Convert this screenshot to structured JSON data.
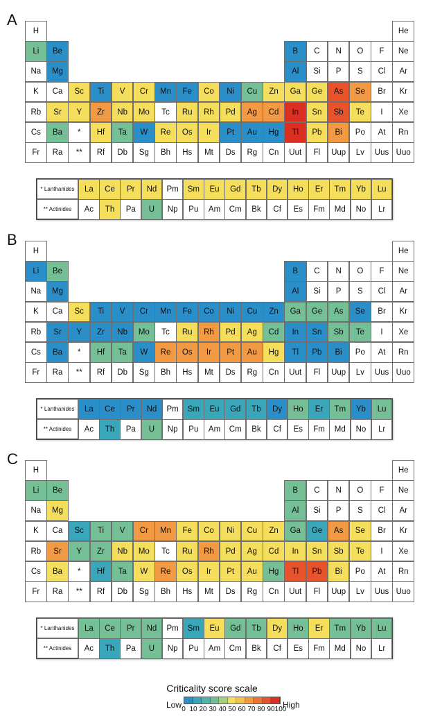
{
  "palette": {
    "white": "#ffffff",
    "b": "#2a8fc9",
    "t": "#3aa6b9",
    "g": "#74bf96",
    "y": "#f4de5c",
    "o": "#f29a43",
    "r": "#e9532b",
    "R": "#dd2e22"
  },
  "panels": [
    {
      "letter": "A",
      "main": [
        [
          "H w",
          "",
          "",
          "",
          "",
          "",
          "",
          "",
          "",
          "",
          "",
          "",
          "",
          "",
          "",
          "",
          "",
          "He w"
        ],
        [
          "Li g",
          "Be b",
          "",
          "",
          "",
          "",
          "",
          "",
          "",
          "",
          "",
          "",
          "B b",
          "C w",
          "N w",
          "O w",
          "F w",
          "Ne w"
        ],
        [
          "Na w",
          "Mg b",
          "",
          "",
          "",
          "",
          "",
          "",
          "",
          "",
          "",
          "",
          "Al b",
          "Si w",
          "P w",
          "S w",
          "Cl w",
          "Ar w"
        ],
        [
          "K w",
          "Ca w",
          "Sc y",
          "Ti b",
          "V y",
          "Cr y",
          "Mn b",
          "Fe b",
          "Co y",
          "Ni b",
          "Cu g",
          "Zn y",
          "Ga y",
          "Ge y",
          "As r",
          "Se o",
          "Br w",
          "Kr w"
        ],
        [
          "Rb w",
          "Sr y",
          "Y y",
          "Zr o",
          "Nb y",
          "Mo y",
          "Tc w",
          "Ru y",
          "Rh y",
          "Pd y",
          "Ag o",
          "Cd o",
          "In R",
          "Sn y",
          "Sb r",
          "Te y",
          "I w",
          "Xe w"
        ],
        [
          "Cs w",
          "Ba g",
          "* w",
          "Hf y",
          "Ta g",
          "W b",
          "Re y",
          "Os y",
          "Ir y",
          "Pt b",
          "Au b",
          "Hg b",
          "Tl R",
          "Pb y",
          "Bi o",
          "Po w",
          "At w",
          "Rn w"
        ],
        [
          "Fr w",
          "Ra w",
          "** w",
          "Rf w",
          "Db w",
          "Sg w",
          "Bh w",
          "Hs w",
          "Mt w",
          "Ds w",
          "Rg w",
          "Cn w",
          "Uut w",
          "Fl w",
          "Uup w",
          "Lv w",
          "Uus w",
          "Uuo w"
        ]
      ],
      "lanthanides": [
        "La y",
        "Ce y",
        "Pr y",
        "Nd y",
        "Pm w",
        "Sm y",
        "Eu y",
        "Gd y",
        "Tb y",
        "Dy y",
        "Ho y",
        "Er y",
        "Tm y",
        "Yb y",
        "Lu y"
      ],
      "actinides": [
        "Ac w",
        "Th y",
        "Pa w",
        "U g",
        "Np w",
        "Pu w",
        "Am w",
        "Cm w",
        "Bk w",
        "Cf w",
        "Es w",
        "Fm w",
        "Md w",
        "No w",
        "Lr w"
      ]
    },
    {
      "letter": "B",
      "main": [
        [
          "H w",
          "",
          "",
          "",
          "",
          "",
          "",
          "",
          "",
          "",
          "",
          "",
          "",
          "",
          "",
          "",
          "",
          "He w"
        ],
        [
          "Li b",
          "Be g",
          "",
          "",
          "",
          "",
          "",
          "",
          "",
          "",
          "",
          "",
          "B b",
          "C w",
          "N w",
          "O w",
          "F w",
          "Ne w"
        ],
        [
          "Na w",
          "Mg b",
          "",
          "",
          "",
          "",
          "",
          "",
          "",
          "",
          "",
          "",
          "Al b",
          "Si w",
          "P w",
          "S w",
          "Cl w",
          "Ar w"
        ],
        [
          "K w",
          "Ca w",
          "Sc y",
          "Ti b",
          "V b",
          "Cr b",
          "Mn b",
          "Fe b",
          "Co b",
          "Ni b",
          "Cu b",
          "Zn b",
          "Ga g",
          "Ge g",
          "As g",
          "Se b",
          "Br w",
          "Kr w"
        ],
        [
          "Rb w",
          "Sr b",
          "Y b",
          "Zr b",
          "Nb b",
          "Mo g",
          "Tc w",
          "Ru y",
          "Rh o",
          "Pd y",
          "Ag y",
          "Cd g",
          "In b",
          "Sn b",
          "Sb g",
          "Te g",
          "I w",
          "Xe w"
        ],
        [
          "Cs w",
          "Ba b",
          "* w",
          "Hf g",
          "Ta g",
          "W b",
          "Re o",
          "Os o",
          "Ir o",
          "Pt o",
          "Au o",
          "Hg y",
          "Tl b",
          "Pb b",
          "Bi b",
          "Po w",
          "At w",
          "Rn w"
        ],
        [
          "Fr w",
          "Ra w",
          "** w",
          "Rf w",
          "Db w",
          "Sg w",
          "Bh w",
          "Hs w",
          "Mt w",
          "Ds w",
          "Rg w",
          "Cn w",
          "Uut w",
          "Fl w",
          "Uup w",
          "Lv w",
          "Uus w",
          "Uuo w"
        ]
      ],
      "lanthanides": [
        "La b",
        "Ce b",
        "Pr b",
        "Nd b",
        "Pm w",
        "Sm t",
        "Eu t",
        "Gd t",
        "Tb t",
        "Dy b",
        "Ho g",
        "Er t",
        "Tm g",
        "Yb b",
        "Lu g"
      ],
      "actinides": [
        "Ac w",
        "Th t",
        "Pa w",
        "U g",
        "Np w",
        "Pu w",
        "Am w",
        "Cm w",
        "Bk w",
        "Cf w",
        "Es w",
        "Fm w",
        "Md w",
        "No w",
        "Lr w"
      ]
    },
    {
      "letter": "C",
      "main": [
        [
          "H w",
          "",
          "",
          "",
          "",
          "",
          "",
          "",
          "",
          "",
          "",
          "",
          "",
          "",
          "",
          "",
          "",
          "He w"
        ],
        [
          "Li g",
          "Be g",
          "",
          "",
          "",
          "",
          "",
          "",
          "",
          "",
          "",
          "",
          "B g",
          "C w",
          "N w",
          "O w",
          "F w",
          "Ne w"
        ],
        [
          "Na w",
          "Mg y",
          "",
          "",
          "",
          "",
          "",
          "",
          "",
          "",
          "",
          "",
          "Al g",
          "Si w",
          "P w",
          "S w",
          "Cl w",
          "Ar w"
        ],
        [
          "K w",
          "Ca w",
          "Sc t",
          "Ti g",
          "V g",
          "Cr o",
          "Mn o",
          "Fe y",
          "Co y",
          "Ni y",
          "Cu y",
          "Zn y",
          "Ga g",
          "Ge t",
          "As o",
          "Se y",
          "Br w",
          "Kr w"
        ],
        [
          "Rb w",
          "Sr o",
          "Y g",
          "Zr g",
          "Nb y",
          "Mo y",
          "Tc w",
          "Ru y",
          "Rh o",
          "Pd y",
          "Ag y",
          "Cd y",
          "In y",
          "Sn y",
          "Sb y",
          "Te y",
          "I w",
          "Xe w"
        ],
        [
          "Cs w",
          "Ba y",
          "* w",
          "Hf t",
          "Ta g",
          "W y",
          "Re o",
          "Os y",
          "Ir y",
          "Pt y",
          "Au y",
          "Hg g",
          "Tl r",
          "Pb r",
          "Bi y",
          "Po w",
          "At w",
          "Rn w"
        ],
        [
          "Fr w",
          "Ra w",
          "** w",
          "Rf w",
          "Db w",
          "Sg w",
          "Bh w",
          "Hs w",
          "Mt w",
          "Ds w",
          "Rg w",
          "Cn w",
          "Uut w",
          "Fl w",
          "Uup w",
          "Lv w",
          "Uus w",
          "Uuo w"
        ]
      ],
      "lanthanides": [
        "La g",
        "Ce g",
        "Pr g",
        "Nd g",
        "Pm w",
        "Sm t",
        "Eu y",
        "Gd g",
        "Tb g",
        "Dy y",
        "Ho g",
        "Er y",
        "Tm g",
        "Yb g",
        "Lu g"
      ],
      "actinides": [
        "Ac w",
        "Th t",
        "Pa w",
        "U g",
        "Np w",
        "Pu w",
        "Am w",
        "Cm w",
        "Bk w",
        "Cf w",
        "Es w",
        "Fm w",
        "Md w",
        "No w",
        "Lr w"
      ]
    }
  ],
  "labels": {
    "lanthanides": "* Lanthanides",
    "actinides": "** Actinides"
  },
  "scale": {
    "title": "Criticality score scale",
    "low": "Low",
    "high": "High",
    "ticks": [
      "0",
      "10",
      "20",
      "30",
      "40",
      "50",
      "60",
      "70",
      "80",
      "90",
      "100"
    ],
    "colors": [
      "#2a8fc9",
      "#3aa6b9",
      "#55b2a8",
      "#74bf96",
      "#a8cf7b",
      "#f4de5c",
      "#f6c04e",
      "#f29a43",
      "#ec7436",
      "#e9532b",
      "#dd2e22"
    ]
  }
}
